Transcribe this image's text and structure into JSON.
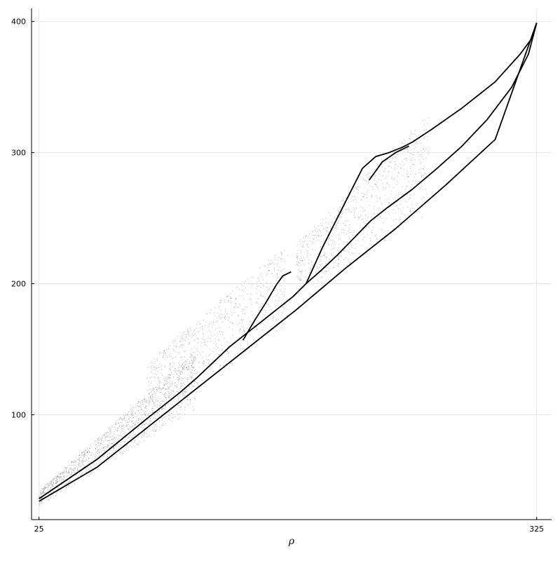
{
  "chart_data": {
    "type": "scatter",
    "title": "",
    "xlabel": "ρ",
    "ylabel": "",
    "xlim": [
      20.5,
      334
    ],
    "ylim": [
      20,
      410
    ],
    "x_ticks": [
      25,
      325
    ],
    "x_tick_labels": [
      "25",
      "325"
    ],
    "y_ticks": [
      100,
      200,
      300,
      400
    ],
    "y_tick_labels": [
      "100",
      "200",
      "300",
      "400"
    ],
    "grid": true,
    "legend": "none",
    "point_color": "#000000",
    "branch_polylines": [
      [
        [
          25,
          34
        ],
        [
          60,
          60
        ],
        [
          90,
          90
        ],
        [
          120,
          120
        ],
        [
          150,
          150
        ],
        [
          180,
          180
        ],
        [
          210,
          212
        ],
        [
          240,
          242
        ],
        [
          270,
          275
        ],
        [
          300,
          310
        ],
        [
          325,
          399
        ]
      ],
      [
        [
          25,
          36
        ],
        [
          60,
          66
        ],
        [
          90,
          97
        ],
        [
          110,
          117
        ],
        [
          120,
          128
        ],
        [
          130,
          140
        ],
        [
          140,
          152
        ],
        [
          150,
          162
        ],
        [
          160,
          172
        ],
        [
          170,
          182
        ],
        [
          178,
          190
        ],
        [
          186,
          200
        ],
        [
          195,
          210
        ],
        [
          205,
          222
        ],
        [
          215,
          235
        ],
        [
          225,
          248
        ],
        [
          235,
          258
        ],
        [
          250,
          272
        ],
        [
          265,
          288
        ],
        [
          280,
          305
        ],
        [
          295,
          325
        ],
        [
          310,
          350
        ],
        [
          320,
          375
        ],
        [
          325,
          399
        ]
      ],
      [
        [
          148,
          157
        ],
        [
          155,
          172
        ],
        [
          162,
          186
        ],
        [
          168,
          199
        ],
        [
          172,
          206
        ],
        [
          177,
          209
        ]
      ],
      [
        [
          186,
          200
        ],
        [
          196,
          228
        ],
        [
          204,
          248
        ],
        [
          212,
          268
        ],
        [
          220,
          288
        ],
        [
          228,
          297
        ],
        [
          236,
          300
        ],
        [
          244,
          304
        ],
        [
          250,
          308
        ],
        [
          262,
          318
        ],
        [
          280,
          334
        ],
        [
          300,
          354
        ],
        [
          315,
          375
        ],
        [
          322,
          387
        ],
        [
          325,
          399
        ]
      ],
      [
        [
          224,
          279
        ],
        [
          232,
          293
        ],
        [
          240,
          300
        ],
        [
          248,
          305
        ]
      ]
    ],
    "cloud_regions": [
      {
        "x": [
          25,
          120
        ],
        "y_lower": [
          30,
          104
        ],
        "y_upper": [
          42,
          150
        ],
        "density": 0.9
      },
      {
        "x": [
          90,
          175
        ],
        "y_lower": [
          90,
          168
        ],
        "y_upper": [
          140,
          230
        ],
        "density": 0.5
      },
      {
        "x": [
          180,
          260
        ],
        "y_lower": [
          190,
          252
        ],
        "y_upper": [
          230,
          330
        ],
        "density": 0.5
      }
    ]
  }
}
